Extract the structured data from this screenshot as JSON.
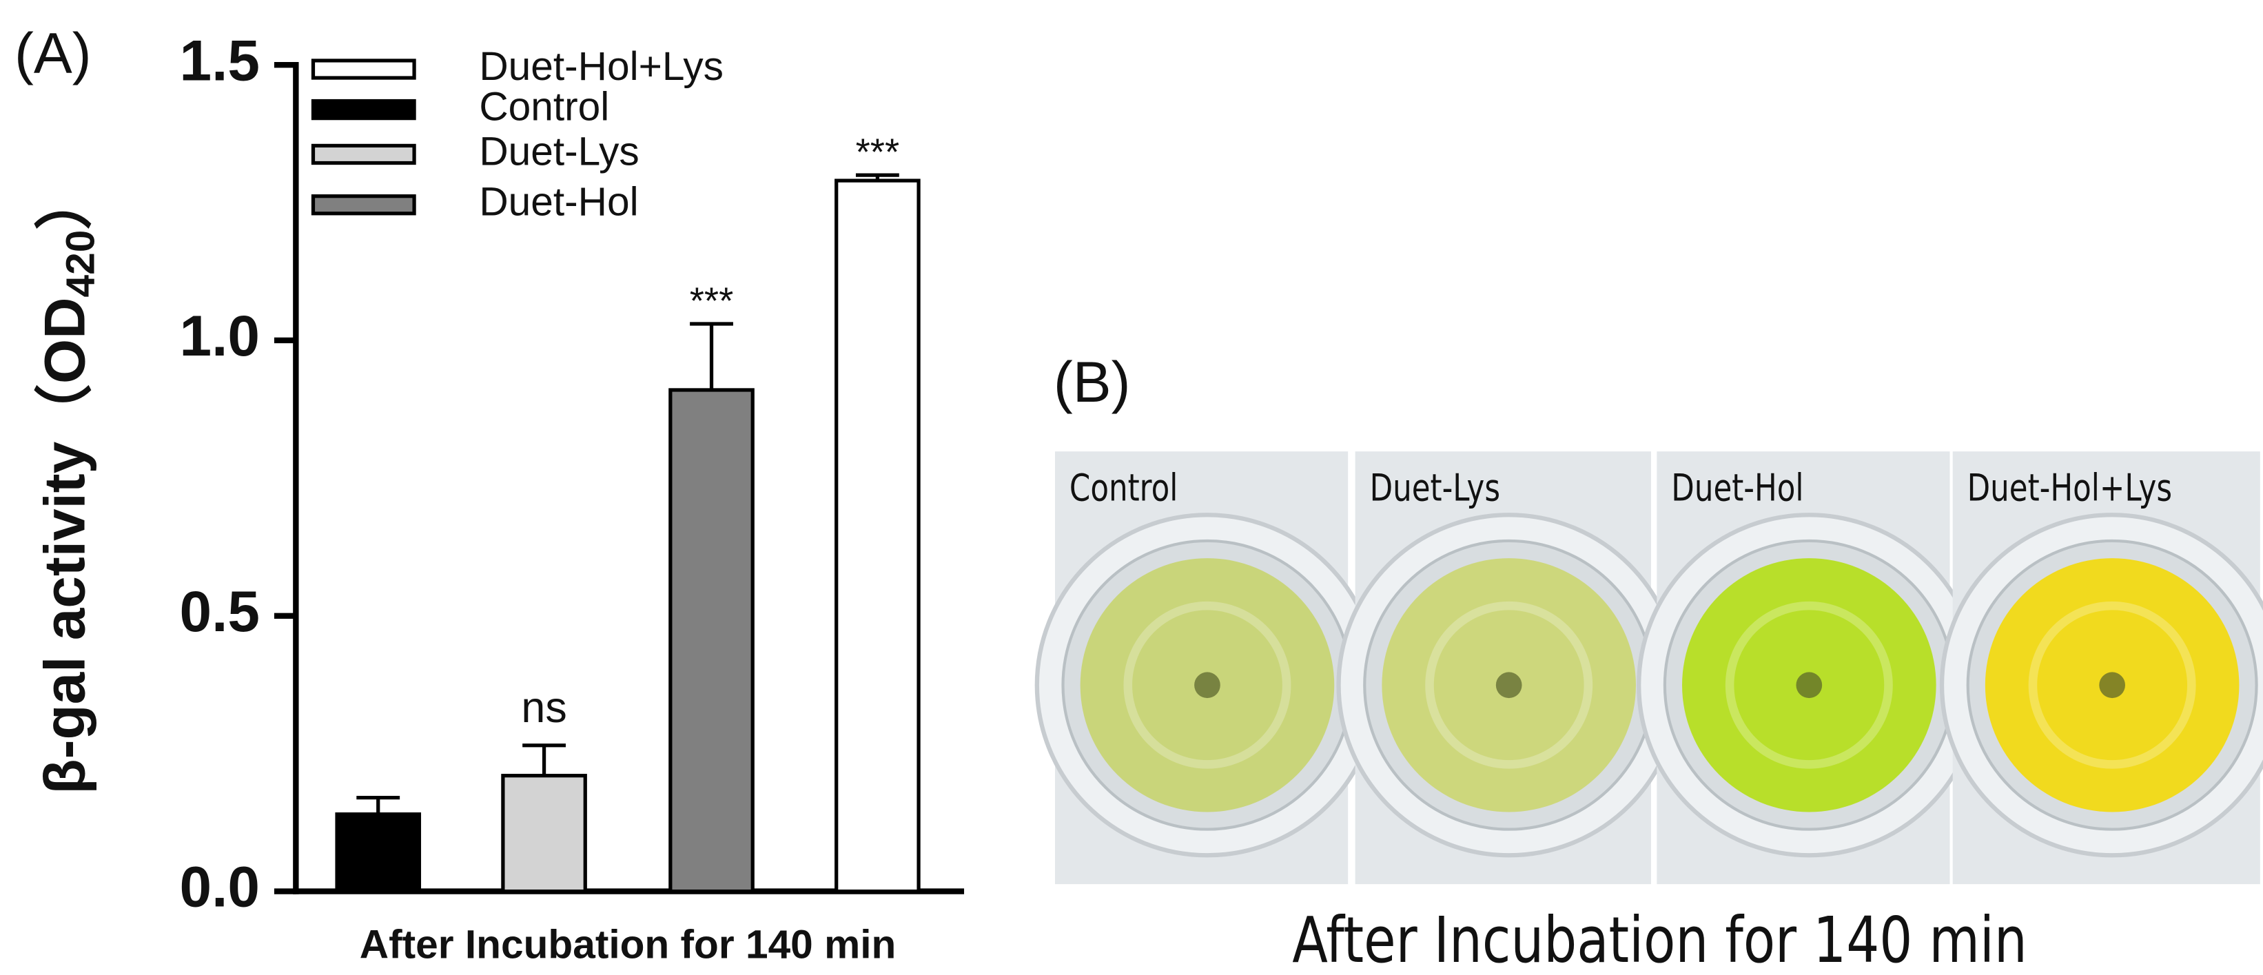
{
  "chart_data": {
    "type": "bar",
    "panel_label": "(A)",
    "y_label": {
      "main": "β-gal activity（OD",
      "subscript": "420",
      "close": "）"
    },
    "x_label": "After Incubation for 140 min",
    "ylim": [
      0,
      1.5
    ],
    "yticks": [
      {
        "value": 0,
        "label": "0.0"
      },
      0.5,
      {
        "value": 1,
        "label": "1.0"
      },
      1.5
    ],
    "series": [
      {
        "name": "Control",
        "color": "#000000",
        "values": [
          0.14
        ],
        "errors": [
          0.03
        ]
      },
      {
        "name": "Duet-Lys",
        "color": "#d3d3d3",
        "values": [
          0.21
        ],
        "errors": [
          0.055
        ],
        "annotation": "ns"
      },
      {
        "name": "Duet-Hol",
        "color": "#808080",
        "values": [
          0.91
        ],
        "errors": [
          0.12
        ],
        "annotation": "***"
      },
      {
        "name": "Duet-Hol+Lys",
        "color": "#ffffff",
        "values": [
          1.29
        ],
        "errors": [
          0.01
        ],
        "annotation": "***"
      }
    ],
    "legend_order": [
      3,
      0,
      1,
      2
    ]
  },
  "photo_panel": {
    "panel_label": "(B)",
    "wells": [
      {
        "label": "Control",
        "color": "#c9d57a"
      },
      {
        "label": "Duet-Lys",
        "color": "#cdd77c"
      },
      {
        "label": "Duet-Hol",
        "color": "#b8df2a"
      },
      {
        "label": "Duet-Hol+Lys",
        "color": "#f1da1e"
      }
    ],
    "caption": "After Incubation for 140 min"
  }
}
